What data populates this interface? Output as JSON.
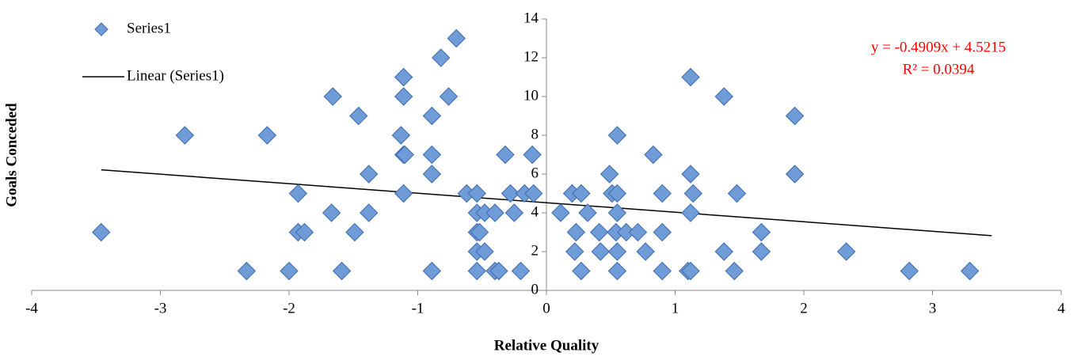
{
  "chart_data": {
    "type": "scatter",
    "x_label": "Relative Quality",
    "y_label": "Goals Conceded",
    "xlim": [
      -4,
      4
    ],
    "xticks": [
      -4,
      -3,
      -2,
      -1,
      0,
      1,
      2,
      3,
      4
    ],
    "ylim": [
      0,
      14
    ],
    "yticks": [
      0,
      2,
      4,
      6,
      8,
      10,
      12,
      14
    ],
    "legend": "top-left",
    "series": [
      {
        "name": "Series1",
        "color": "#6f9bd6",
        "x": [
          -3.46,
          -2.81,
          -2.33,
          -2.17,
          -2.0,
          -1.93,
          -1.93,
          -1.88,
          -1.67,
          -1.66,
          -1.59,
          -1.49,
          -1.46,
          -1.38,
          -1.38,
          -1.13,
          -1.11,
          -1.11,
          -1.11,
          -1.1,
          -1.11,
          -0.89,
          -0.89,
          -0.89,
          -0.89,
          -0.82,
          -0.76,
          -0.7,
          -0.62,
          -0.54,
          -0.54,
          -0.54,
          -0.52,
          -0.54,
          -0.54,
          -0.48,
          -0.48,
          -0.4,
          -0.4,
          -0.37,
          -0.32,
          -0.28,
          -0.25,
          -0.2,
          -0.17,
          -0.11,
          -0.1,
          0.11,
          0.2,
          0.22,
          0.23,
          0.27,
          0.27,
          0.32,
          0.41,
          0.42,
          0.49,
          0.51,
          0.54,
          0.55,
          0.55,
          0.55,
          0.55,
          0.55,
          0.62,
          0.71,
          0.77,
          0.83,
          0.9,
          0.9,
          0.9,
          1.1,
          1.12,
          1.12,
          1.12,
          1.12,
          1.14,
          1.38,
          1.38,
          1.46,
          1.48,
          1.67,
          1.67,
          1.93,
          1.93,
          2.33,
          2.82,
          3.29
        ],
        "values": [
          3,
          8,
          1,
          8,
          1,
          5,
          3,
          3,
          4,
          10,
          1,
          3,
          9,
          4,
          6,
          8,
          11,
          10,
          7,
          7,
          5,
          9,
          7,
          6,
          1,
          12,
          10,
          13,
          5,
          5,
          4,
          3,
          3,
          2,
          1,
          2,
          4,
          4,
          1,
          1,
          7,
          5,
          4,
          1,
          5,
          7,
          5,
          4,
          5,
          2,
          3,
          5,
          1,
          4,
          3,
          2,
          6,
          5,
          3,
          5,
          8,
          4,
          2,
          1,
          3,
          3,
          2,
          7,
          5,
          3,
          1,
          1,
          1,
          11,
          6,
          4,
          5,
          10,
          2,
          1,
          5,
          3,
          2,
          9,
          6,
          2,
          1,
          1
        ]
      }
    ],
    "trendline": {
      "name": "Linear (Series1)",
      "color": "#000000",
      "slope": -0.4909,
      "intercept": 4.5215,
      "x": [
        -3.46,
        3.46
      ]
    },
    "annotations": [
      "y = -0.4909x + 4.5215",
      "R² = 0.0394"
    ]
  }
}
